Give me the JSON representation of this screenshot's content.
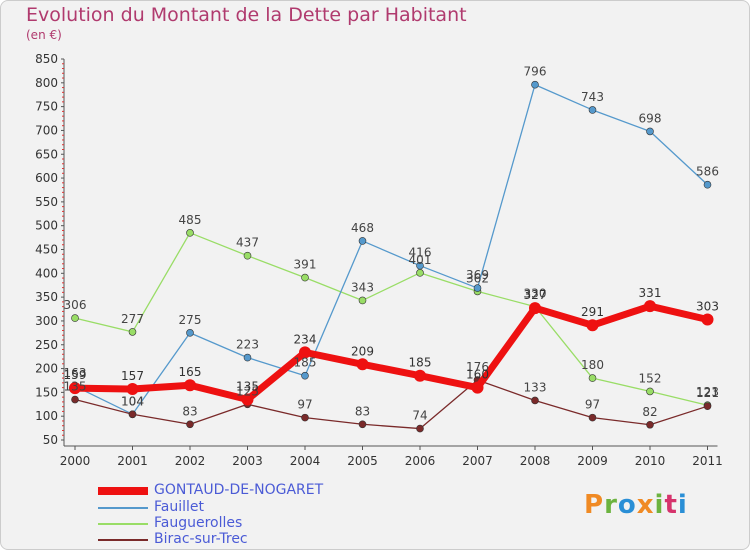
{
  "header": {
    "title": "Evolution du Montant de la Dette par Habitant",
    "subtitle": "(en €)"
  },
  "logo": {
    "text": "Proxiti",
    "colors": [
      "#f08a24",
      "#6cb33f",
      "#2a8fd6",
      "#f08a24",
      "#6cb33f",
      "#d6336c",
      "#2a8fd6"
    ]
  },
  "chart_data": {
    "type": "line",
    "title": "Evolution du Montant de la Dette par Habitant",
    "subtitle": "(en €)",
    "x": [
      "2000",
      "2001",
      "2002",
      "2003",
      "2004",
      "2005",
      "2006",
      "2007",
      "2008",
      "2009",
      "2010",
      "2011"
    ],
    "ylim": [
      50,
      850
    ],
    "yticks": [
      50,
      100,
      150,
      200,
      250,
      300,
      350,
      400,
      450,
      500,
      550,
      600,
      650,
      700,
      750,
      800,
      850
    ],
    "grid": false,
    "legend_position": "bottom-left",
    "series": [
      {
        "name": "Fauguerolles",
        "color": "#99dd66",
        "width": 1.3,
        "values": [
          306,
          277,
          485,
          437,
          391,
          343,
          401,
          362,
          330,
          180,
          152,
          123
        ]
      },
      {
        "name": "Fauillet",
        "color": "#5599cc",
        "width": 1.3,
        "values": [
          163,
          104,
          275,
          223,
          185,
          468,
          416,
          369,
          796,
          743,
          698,
          586
        ]
      },
      {
        "name": "Birac-sur-Trec",
        "color": "#7a2a2a",
        "width": 1.3,
        "values": [
          135,
          104,
          83,
          125,
          97,
          83,
          74,
          176,
          133,
          97,
          82,
          121
        ]
      },
      {
        "name": "GONTAUD-DE-NOGARET",
        "color": "#ee1111",
        "width": 7,
        "values": [
          159,
          157,
          165,
          135,
          234,
          209,
          185,
          160,
          327,
          291,
          331,
          303
        ]
      }
    ]
  }
}
